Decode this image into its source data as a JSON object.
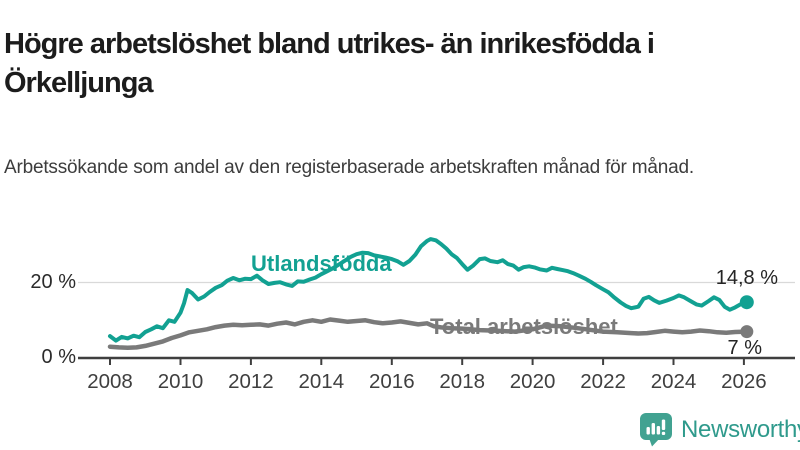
{
  "header": {
    "title": "Högre arbetslöshet bland utrikes- än inrikesfödda i Örkelljunga",
    "subtitle": "Arbetssökande som andel av den registerbaserade arbetskraften månad för månad."
  },
  "chart_data": {
    "type": "line",
    "x_ticks": [
      2008,
      2010,
      2012,
      2014,
      2016,
      2018,
      2020,
      2022,
      2024,
      2026
    ],
    "y_ticks": [
      {
        "value": 0,
        "label": "0 %"
      },
      {
        "value": 20,
        "label": "20 %"
      }
    ],
    "x_range": [
      2007.09,
      2027.45
    ],
    "y_range": [
      0,
      37.9
    ],
    "grid": "horizontal-only",
    "legend_position": "inline-labels",
    "colors": {
      "grid": "#d9d9d9",
      "axis": "#3f3f3f"
    },
    "series": [
      {
        "name": "Utlandsfödda",
        "color": "#12a192",
        "end_label": "14,8 %",
        "end_value": 14.8,
        "points": [
          [
            2008.0,
            5.8
          ],
          [
            2008.17,
            4.6
          ],
          [
            2008.33,
            5.6
          ],
          [
            2008.5,
            5.2
          ],
          [
            2008.67,
            5.9
          ],
          [
            2008.83,
            5.5
          ],
          [
            2009.0,
            6.9
          ],
          [
            2009.17,
            7.6
          ],
          [
            2009.33,
            8.4
          ],
          [
            2009.5,
            7.9
          ],
          [
            2009.67,
            10.0
          ],
          [
            2009.83,
            9.6
          ],
          [
            2010.0,
            12.0
          ],
          [
            2010.1,
            14.5
          ],
          [
            2010.2,
            18.0
          ],
          [
            2010.33,
            17.2
          ],
          [
            2010.5,
            15.5
          ],
          [
            2010.67,
            16.3
          ],
          [
            2010.83,
            17.5
          ],
          [
            2011.0,
            18.6
          ],
          [
            2011.17,
            19.3
          ],
          [
            2011.33,
            20.5
          ],
          [
            2011.5,
            21.2
          ],
          [
            2011.67,
            20.6
          ],
          [
            2011.83,
            21.0
          ],
          [
            2012.0,
            20.9
          ],
          [
            2012.17,
            21.8
          ],
          [
            2012.33,
            20.6
          ],
          [
            2012.5,
            19.6
          ],
          [
            2012.67,
            19.9
          ],
          [
            2012.83,
            20.1
          ],
          [
            2013.0,
            19.5
          ],
          [
            2013.17,
            19.1
          ],
          [
            2013.33,
            20.3
          ],
          [
            2013.5,
            20.2
          ],
          [
            2013.67,
            20.8
          ],
          [
            2013.83,
            21.3
          ],
          [
            2014.0,
            22.2
          ],
          [
            2014.17,
            23.0
          ],
          [
            2014.33,
            23.8
          ],
          [
            2014.5,
            24.8
          ],
          [
            2014.67,
            25.8
          ],
          [
            2014.83,
            26.8
          ],
          [
            2015.0,
            27.5
          ],
          [
            2015.17,
            27.9
          ],
          [
            2015.33,
            27.8
          ],
          [
            2015.5,
            27.2
          ],
          [
            2015.67,
            26.9
          ],
          [
            2015.83,
            26.6
          ],
          [
            2016.0,
            26.2
          ],
          [
            2016.17,
            25.6
          ],
          [
            2016.33,
            24.7
          ],
          [
            2016.5,
            25.7
          ],
          [
            2016.67,
            27.4
          ],
          [
            2016.83,
            29.6
          ],
          [
            2017.0,
            31.0
          ],
          [
            2017.1,
            31.5
          ],
          [
            2017.25,
            31.2
          ],
          [
            2017.4,
            30.2
          ],
          [
            2017.55,
            29.0
          ],
          [
            2017.7,
            27.5
          ],
          [
            2017.85,
            26.5
          ],
          [
            2018.0,
            24.9
          ],
          [
            2018.15,
            23.4
          ],
          [
            2018.3,
            24.4
          ],
          [
            2018.5,
            26.2
          ],
          [
            2018.65,
            26.4
          ],
          [
            2018.8,
            25.7
          ],
          [
            2019.0,
            25.4
          ],
          [
            2019.15,
            25.9
          ],
          [
            2019.3,
            24.9
          ],
          [
            2019.45,
            24.5
          ],
          [
            2019.6,
            23.4
          ],
          [
            2019.75,
            24.1
          ],
          [
            2019.9,
            24.3
          ],
          [
            2020.05,
            24.0
          ],
          [
            2020.2,
            23.5
          ],
          [
            2020.4,
            23.2
          ],
          [
            2020.55,
            23.9
          ],
          [
            2020.7,
            23.6
          ],
          [
            2020.85,
            23.3
          ],
          [
            2021.0,
            23.0
          ],
          [
            2021.15,
            22.5
          ],
          [
            2021.3,
            21.9
          ],
          [
            2021.5,
            21.0
          ],
          [
            2021.65,
            20.2
          ],
          [
            2021.8,
            19.3
          ],
          [
            2022.0,
            18.2
          ],
          [
            2022.15,
            17.4
          ],
          [
            2022.3,
            16.2
          ],
          [
            2022.5,
            14.7
          ],
          [
            2022.65,
            13.8
          ],
          [
            2022.8,
            13.2
          ],
          [
            2023.0,
            13.6
          ],
          [
            2023.15,
            15.7
          ],
          [
            2023.3,
            16.2
          ],
          [
            2023.45,
            15.3
          ],
          [
            2023.6,
            14.6
          ],
          [
            2023.8,
            15.2
          ],
          [
            2024.0,
            15.9
          ],
          [
            2024.15,
            16.6
          ],
          [
            2024.3,
            16.1
          ],
          [
            2024.5,
            15.0
          ],
          [
            2024.65,
            14.2
          ],
          [
            2024.8,
            13.9
          ],
          [
            2025.0,
            15.1
          ],
          [
            2025.15,
            16.1
          ],
          [
            2025.3,
            15.4
          ],
          [
            2025.45,
            13.6
          ],
          [
            2025.6,
            12.8
          ],
          [
            2025.75,
            13.4
          ],
          [
            2025.9,
            14.2
          ],
          [
            2026.08,
            14.8
          ]
        ]
      },
      {
        "name": "Total arbetslöshet",
        "color": "#7a7a7a",
        "end_label": "7 %",
        "end_value": 7,
        "points": [
          [
            2008.0,
            3.0
          ],
          [
            2008.25,
            2.8
          ],
          [
            2008.5,
            2.7
          ],
          [
            2008.75,
            2.8
          ],
          [
            2009.0,
            3.2
          ],
          [
            2009.25,
            3.8
          ],
          [
            2009.5,
            4.4
          ],
          [
            2009.75,
            5.3
          ],
          [
            2010.0,
            6.0
          ],
          [
            2010.25,
            6.8
          ],
          [
            2010.5,
            7.2
          ],
          [
            2010.75,
            7.6
          ],
          [
            2011.0,
            8.2
          ],
          [
            2011.25,
            8.6
          ],
          [
            2011.5,
            8.8
          ],
          [
            2011.75,
            8.7
          ],
          [
            2012.0,
            8.8
          ],
          [
            2012.25,
            8.9
          ],
          [
            2012.5,
            8.6
          ],
          [
            2012.75,
            9.1
          ],
          [
            2013.0,
            9.4
          ],
          [
            2013.25,
            8.9
          ],
          [
            2013.5,
            9.6
          ],
          [
            2013.75,
            10.0
          ],
          [
            2014.0,
            9.6
          ],
          [
            2014.25,
            10.2
          ],
          [
            2014.5,
            9.9
          ],
          [
            2014.75,
            9.6
          ],
          [
            2015.0,
            9.8
          ],
          [
            2015.25,
            10.0
          ],
          [
            2015.5,
            9.5
          ],
          [
            2015.75,
            9.2
          ],
          [
            2016.0,
            9.4
          ],
          [
            2016.25,
            9.7
          ],
          [
            2016.5,
            9.3
          ],
          [
            2016.75,
            8.9
          ],
          [
            2017.0,
            9.2
          ],
          [
            2017.2,
            8.4
          ],
          [
            2017.4,
            8.1
          ],
          [
            2017.7,
            7.9
          ],
          [
            2018.0,
            7.8
          ],
          [
            2018.5,
            7.4
          ],
          [
            2019.0,
            7.2
          ],
          [
            2019.5,
            7.0
          ],
          [
            2020.0,
            7.6
          ],
          [
            2020.4,
            8.6
          ],
          [
            2020.8,
            8.4
          ],
          [
            2021.2,
            8.0
          ],
          [
            2021.6,
            7.5
          ],
          [
            2022.0,
            7.0
          ],
          [
            2022.4,
            6.8
          ],
          [
            2022.8,
            6.6
          ],
          [
            2023.0,
            6.5
          ],
          [
            2023.25,
            6.6
          ],
          [
            2023.5,
            6.9
          ],
          [
            2023.75,
            7.2
          ],
          [
            2024.0,
            7.0
          ],
          [
            2024.25,
            6.8
          ],
          [
            2024.5,
            7.0
          ],
          [
            2024.75,
            7.3
          ],
          [
            2025.0,
            7.1
          ],
          [
            2025.25,
            6.8
          ],
          [
            2025.5,
            6.7
          ],
          [
            2025.75,
            6.9
          ],
          [
            2026.08,
            7.0
          ]
        ]
      }
    ]
  },
  "footer": {
    "brand": "Newsworthy",
    "brand_color": "#2f9a8c",
    "logo_color": "#41a291"
  }
}
